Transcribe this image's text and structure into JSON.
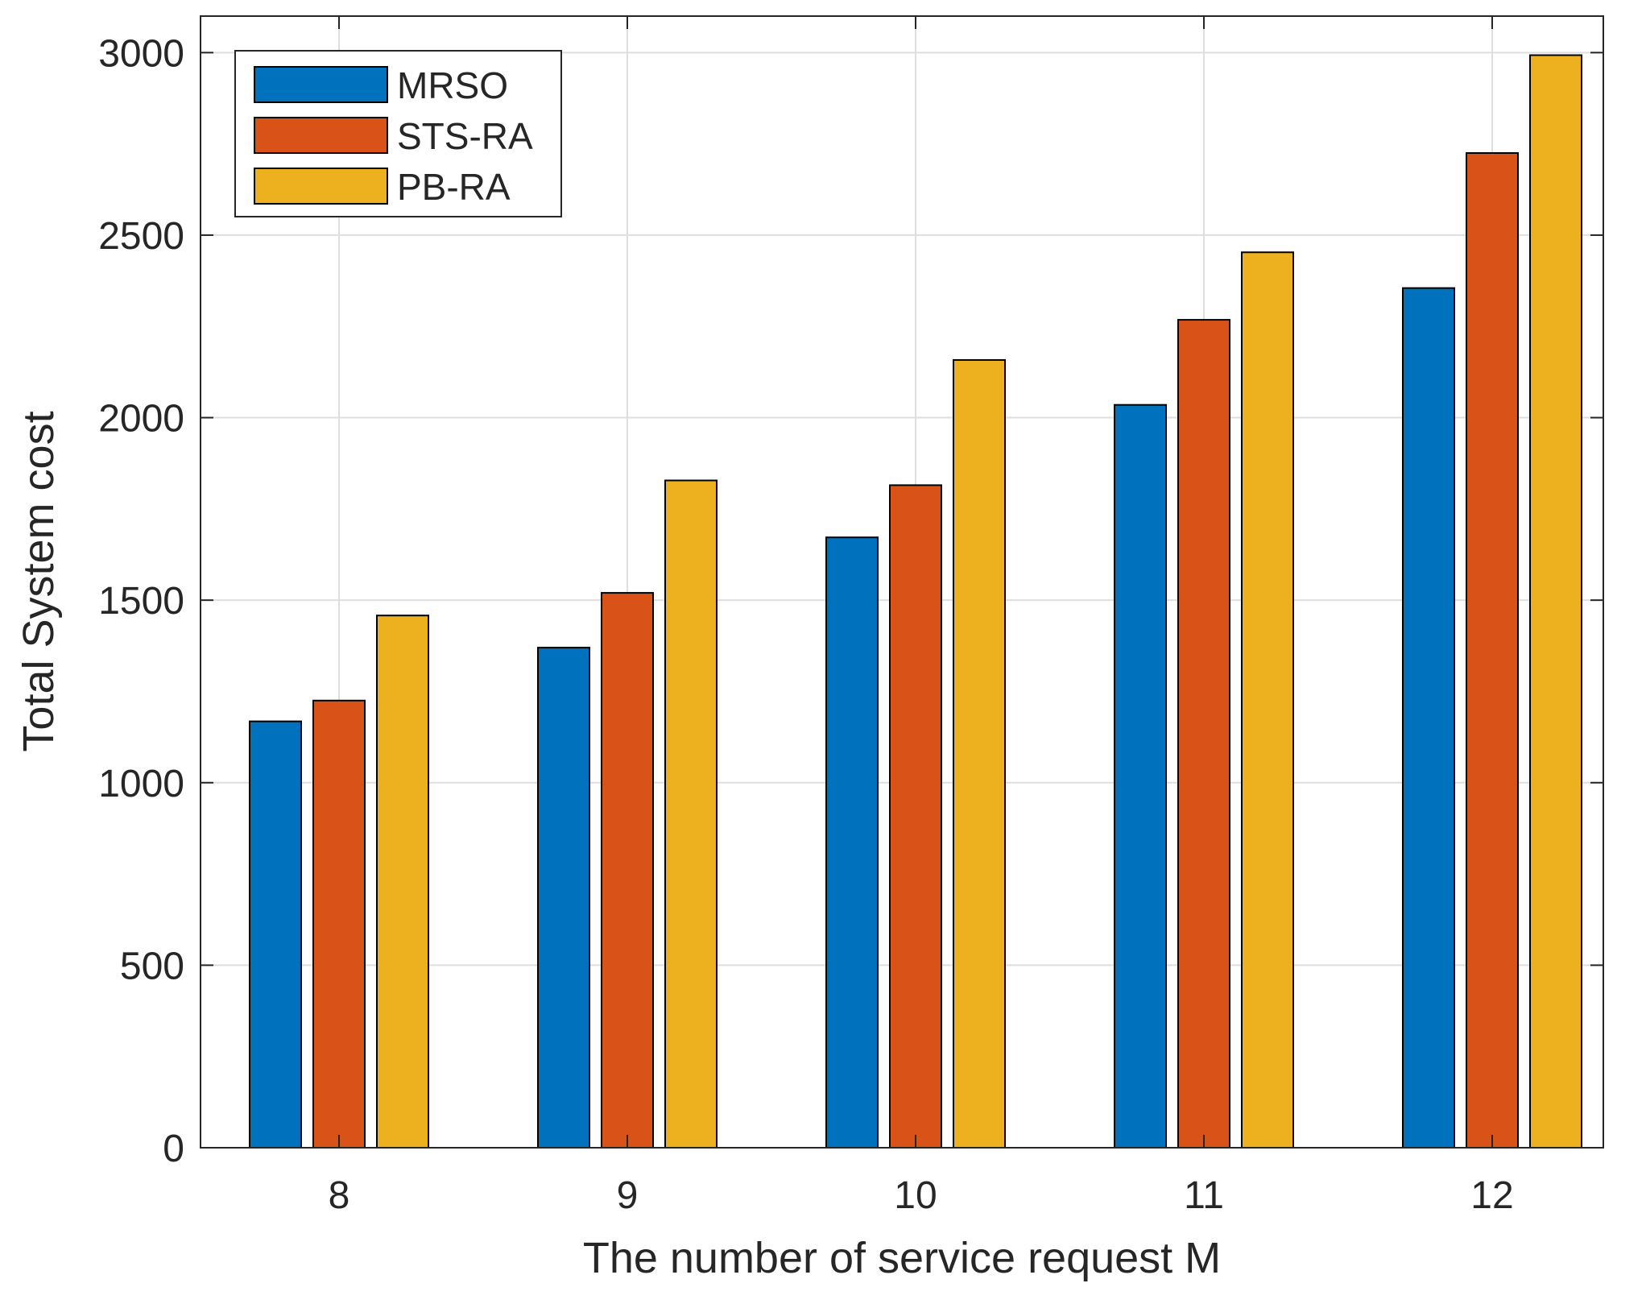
{
  "chart_data": {
    "type": "bar",
    "title": "",
    "xlabel": "The number of service request M",
    "ylabel": "Total System cost",
    "categories": [
      "8",
      "9",
      "10",
      "11",
      "12"
    ],
    "series": [
      {
        "name": "MRSO",
        "color": "#0072BD",
        "values": [
          1168,
          1370,
          1672,
          2035,
          2355
        ]
      },
      {
        "name": "STS-RA",
        "color": "#D95319",
        "values": [
          1225,
          1520,
          1815,
          2268,
          2725
        ]
      },
      {
        "name": "PB-RA",
        "color": "#EDB120",
        "values": [
          1458,
          1828,
          2158,
          2453,
          2993
        ]
      }
    ],
    "ylim": [
      0,
      3100
    ],
    "yticks": [
      0,
      500,
      1000,
      1500,
      2000,
      2500,
      3000
    ],
    "grid": true,
    "legend_position": "top-left"
  }
}
